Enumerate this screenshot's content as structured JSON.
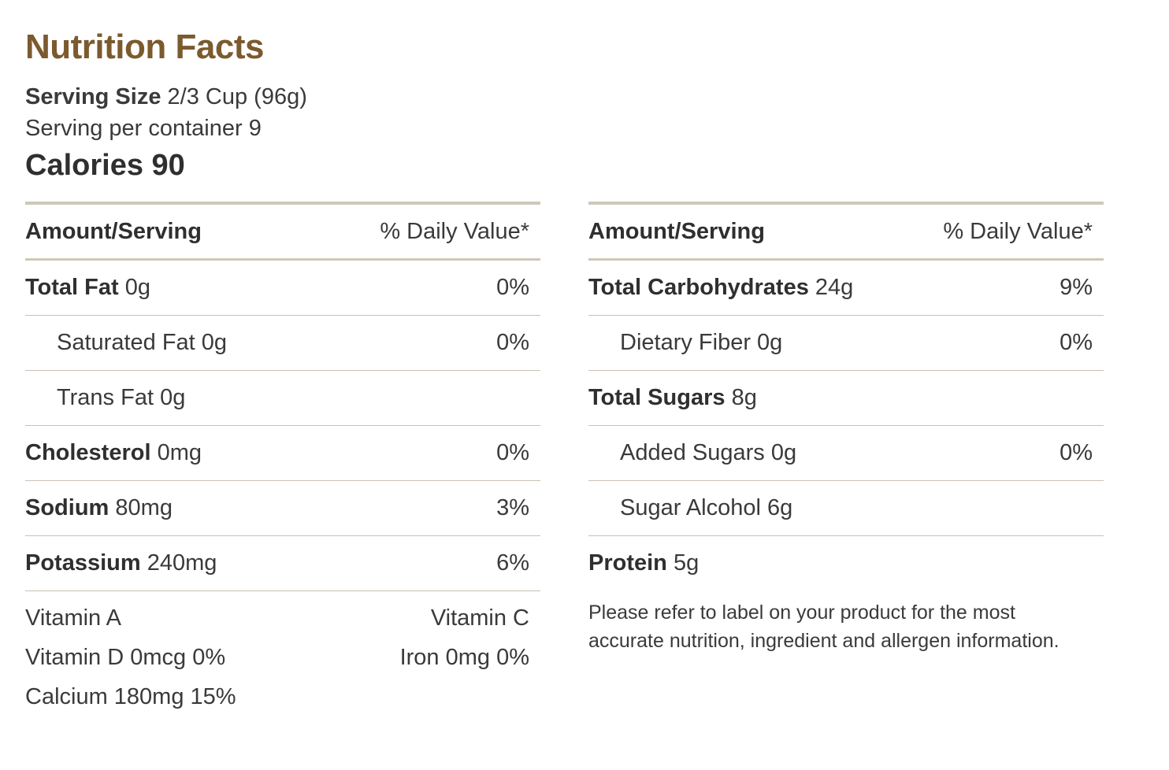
{
  "title": "Nutrition Facts",
  "serving": {
    "size_label": "Serving Size",
    "size_value": "2/3 Cup (96g)",
    "per_container": "Serving per container 9"
  },
  "calories": "Calories 90",
  "left_panel": {
    "amount_header": "Amount/Serving",
    "dv_header": "% Daily Value*",
    "rows": [
      {
        "name": "Total Fat",
        "amount": "0g",
        "dv": "0%"
      },
      {
        "name": "Saturated Fat 0g",
        "dv": "0%"
      },
      {
        "name": "Trans Fat 0g",
        "dv": ""
      },
      {
        "name": "Cholesterol",
        "amount": "0mg",
        "dv": "0%"
      },
      {
        "name": "Sodium",
        "amount": "80mg",
        "dv": "3%"
      },
      {
        "name": "Potassium",
        "amount": "240mg",
        "dv": "6%"
      }
    ]
  },
  "right_panel": {
    "amount_header": "Amount/Serving",
    "dv_header": "% Daily Value*",
    "rows": [
      {
        "name": "Total Carbohydrates",
        "amount": "24g",
        "dv": "9%"
      },
      {
        "name": "Dietary Fiber 0g",
        "dv": "0%"
      },
      {
        "name": "Total Sugars",
        "amount": "8g",
        "dv": ""
      },
      {
        "name": "Added Sugars 0g",
        "dv": "0%"
      },
      {
        "name": "Sugar Alcohol 6g",
        "dv": ""
      },
      {
        "name": "Protein",
        "amount": "5g",
        "dv": ""
      }
    ]
  },
  "vitamins": {
    "vitamin_a": "Vitamin A",
    "vitamin_c": "Vitamin C",
    "vitamin_d": "Vitamin D 0mcg 0%",
    "iron": "Iron 0mg 0%",
    "calcium": "Calcium 180mg 15%"
  },
  "note": "Please refer to label on your product for the most accurate nutrition, ingredient and allergen information.",
  "colors": {
    "title": "#7b5a2e",
    "rule": "#cfc7b9",
    "text": "#3a3a3a"
  }
}
